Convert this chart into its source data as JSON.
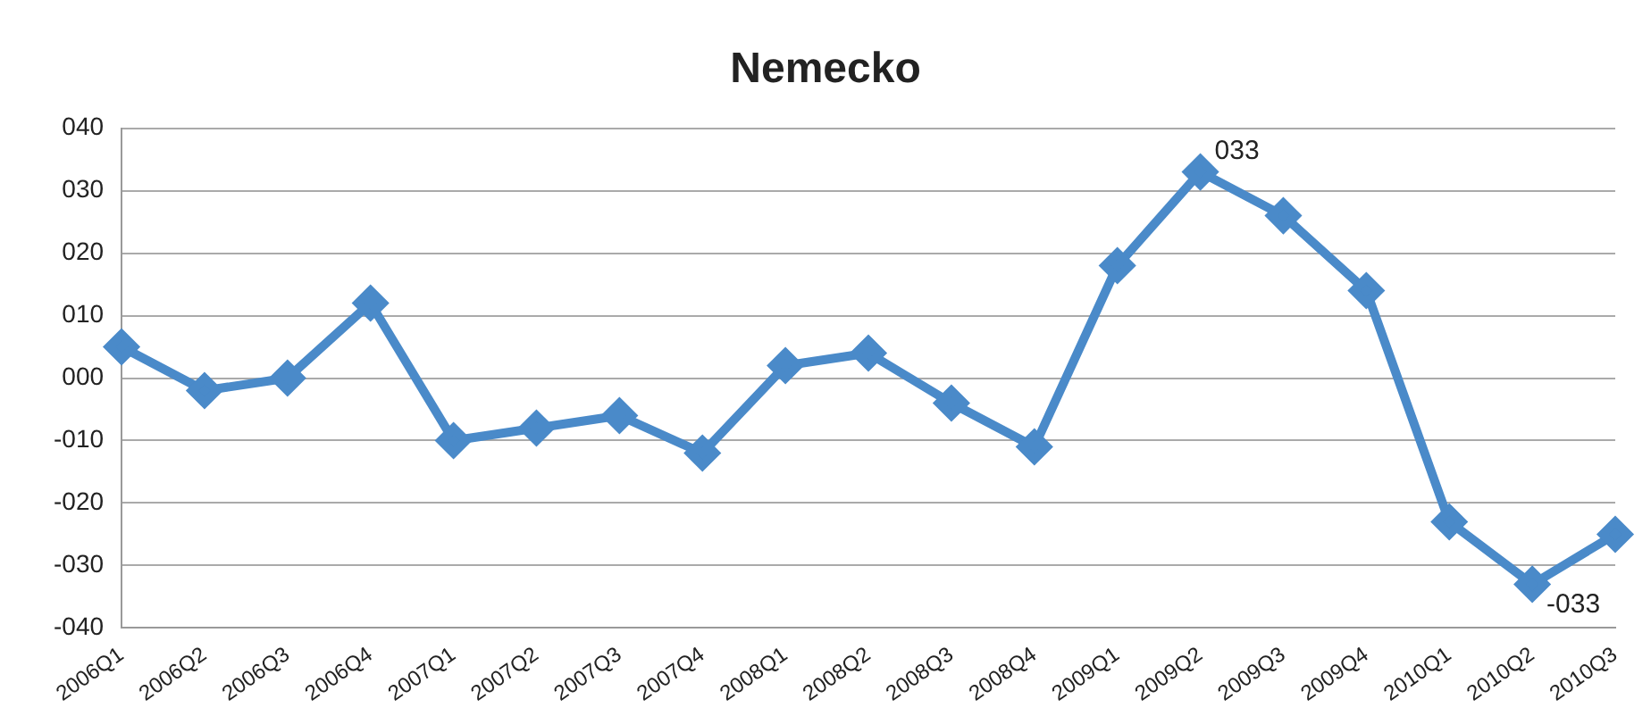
{
  "chart_data": {
    "type": "line",
    "title": "Nemecko",
    "categories": [
      "2006Q1",
      "2006Q2",
      "2006Q3",
      "2006Q4",
      "2007Q1",
      "2007Q2",
      "2007Q3",
      "2007Q4",
      "2008Q1",
      "2008Q2",
      "2008Q3",
      "2008Q4",
      "2009Q1",
      "2009Q2",
      "2009Q3",
      "2009Q4",
      "2010Q1",
      "2010Q2",
      "2010Q3"
    ],
    "series": [
      {
        "color": "#4a8ac9",
        "values": [
          5,
          -2,
          0,
          12,
          -10,
          -8,
          -6,
          -12,
          2,
          4,
          -4,
          -11,
          18,
          33,
          26,
          14,
          -23,
          -33,
          -25
        ],
        "value_labels": [
          null,
          null,
          null,
          null,
          null,
          null,
          null,
          null,
          null,
          null,
          null,
          null,
          null,
          "033",
          null,
          null,
          null,
          "-033",
          null
        ]
      }
    ],
    "ylim": [
      -40,
      40
    ],
    "yticks": [
      {
        "value": -40,
        "label": "-040"
      },
      {
        "value": -30,
        "label": "-030"
      },
      {
        "value": -20,
        "label": "-020"
      },
      {
        "value": -10,
        "label": "-010"
      },
      {
        "value": 0,
        "label": "000"
      },
      {
        "value": 10,
        "label": "010"
      },
      {
        "value": 20,
        "label": "020"
      },
      {
        "value": 30,
        "label": "030"
      },
      {
        "value": 40,
        "label": "040"
      }
    ],
    "grid": "y",
    "legend": false,
    "marker": "diamond",
    "line_style": "solid"
  }
}
